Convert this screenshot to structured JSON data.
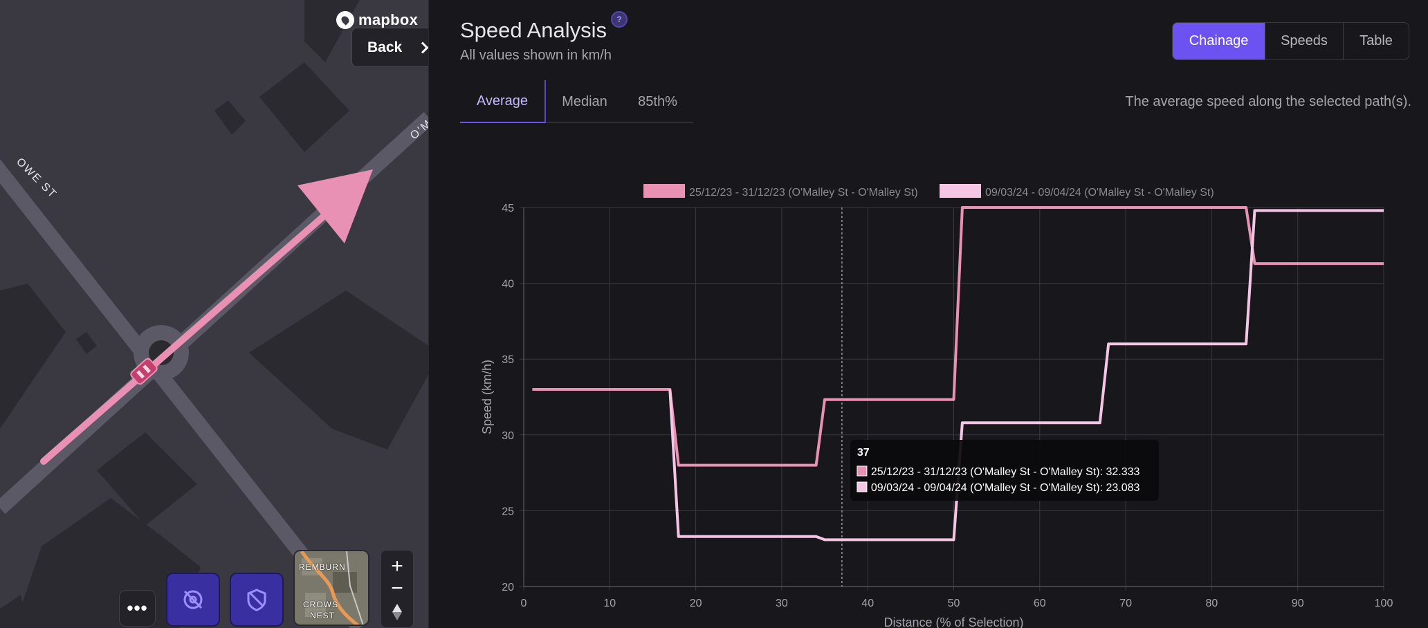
{
  "map": {
    "logo_text": "mapbox",
    "back_label": "Back",
    "more_label": "•••",
    "street_labels": [
      "OWE ST",
      "O'M"
    ],
    "satellite_labels": [
      "REMBURN",
      "CROWS",
      "NEST"
    ],
    "zoom_in": "+",
    "zoom_out": "−"
  },
  "panel": {
    "title": "Speed Analysis",
    "subtitle": "All values shown in km/h",
    "help_glyph": "?",
    "views": [
      "Chainage",
      "Speeds",
      "Table"
    ],
    "active_view": "Chainage",
    "tabs": [
      "Average",
      "Median",
      "85th%"
    ],
    "active_tab": "Average",
    "tab_description": "The average speed along the selected path(s)."
  },
  "colors": {
    "accent": "#6c52f0",
    "series1": "#e891b4",
    "series2": "#f5c6e4",
    "route": "#e891b4"
  },
  "chart_data": {
    "type": "line",
    "xlabel": "Distance (% of Selection)",
    "ylabel": "Speed (km/h)",
    "xlim": [
      0,
      100
    ],
    "ylim": [
      20,
      45
    ],
    "xticks": [
      "0",
      "10",
      "20",
      "30",
      "40",
      "50",
      "60",
      "70",
      "80",
      "90",
      "100"
    ],
    "yticks": [
      "20",
      "25",
      "30",
      "35",
      "40",
      "45"
    ],
    "legend_position": "top",
    "grid": true,
    "series": [
      {
        "name": "25/12/23 - 31/12/23 (O'Malley St - O'Malley St)",
        "points": [
          [
            1,
            33
          ],
          [
            17,
            33
          ],
          [
            18,
            28
          ],
          [
            34,
            28
          ],
          [
            35,
            32.333
          ],
          [
            50,
            32.333
          ],
          [
            51,
            45
          ],
          [
            84,
            45
          ],
          [
            85,
            41.3
          ],
          [
            100,
            41.3
          ]
        ]
      },
      {
        "name": "09/03/24 - 09/04/24 (O'Malley St - O'Malley St)",
        "points": [
          [
            17,
            33
          ],
          [
            18,
            23.3
          ],
          [
            34,
            23.3
          ],
          [
            35,
            23.083
          ],
          [
            50,
            23.083
          ],
          [
            51,
            30.8
          ],
          [
            67,
            30.8
          ],
          [
            68,
            36
          ],
          [
            84,
            36
          ],
          [
            85,
            44.8
          ],
          [
            100,
            44.8
          ]
        ]
      }
    ],
    "hover_x": 37,
    "tooltip": {
      "title": "37",
      "rows": [
        "25/12/23 - 31/12/23 (O'Malley St - O'Malley St): 32.333",
        "09/03/24 - 09/04/24 (O'Malley St - O'Malley St): 23.083"
      ]
    }
  }
}
